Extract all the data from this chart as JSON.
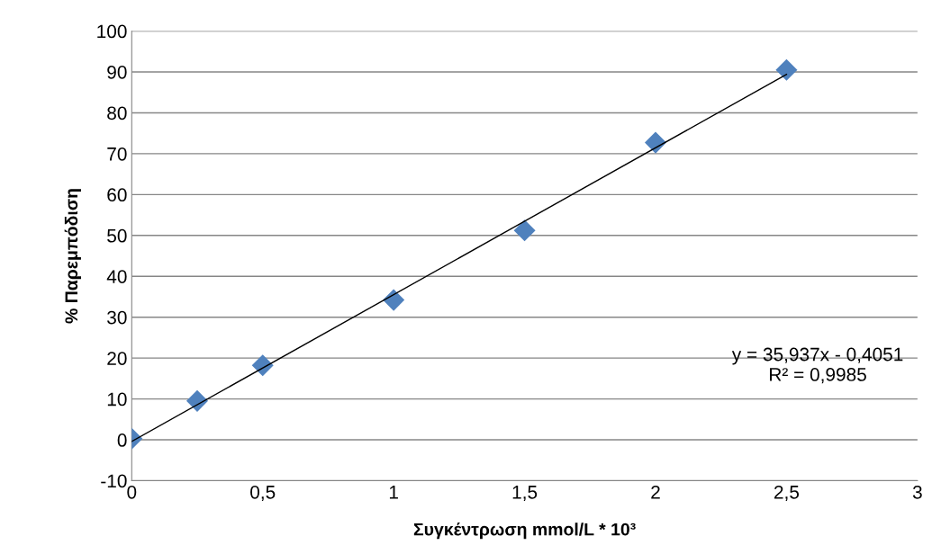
{
  "chart_data": {
    "type": "scatter",
    "xlabel": "Συγκέντρωση mmol/L * 10³",
    "ylabel": "% Παρεμπόδιση",
    "series": [
      {
        "color": "#4f81bd",
        "marker": "diamond",
        "x": [
          0,
          0.25,
          0.5,
          1,
          1.5,
          2,
          2.5
        ],
        "values": [
          0.3,
          9.5,
          18.2,
          34.2,
          51.2,
          72.7,
          90.5
        ]
      },
      {
        "type": "line",
        "color": "#000000",
        "marker": "none",
        "line_style": "solid",
        "x": [
          0,
          2.5
        ],
        "values": [
          -0.4,
          89.4
        ]
      }
    ],
    "annotations": [
      "y = 35,937x - 0,4051\nR² = 0,9985"
    ],
    "xlim": [
      0,
      3
    ],
    "ylim": [
      -10,
      100
    ],
    "xticks": [
      0,
      {
        "value": 0.5,
        "label": "0,5"
      },
      1,
      {
        "value": 1.5,
        "label": "1,5"
      },
      2,
      {
        "value": 2.5,
        "label": "2,5"
      },
      3
    ],
    "yticks": [
      -10,
      0,
      10,
      20,
      30,
      40,
      50,
      60,
      70,
      80,
      90,
      100
    ],
    "grid": true
  }
}
